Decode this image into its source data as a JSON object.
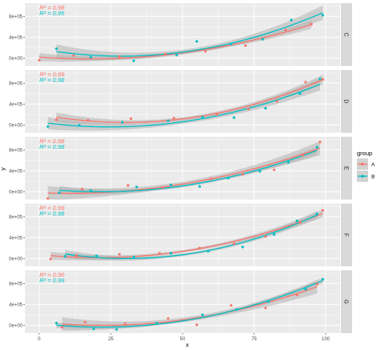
{
  "chart_data": {
    "type": "scatter",
    "facet_layout": "vertical",
    "xlabel": "x",
    "ylabel": "y",
    "xlim": [
      -5,
      105
    ],
    "x_ticks": [
      0,
      25,
      50,
      75,
      100
    ],
    "ylim": [
      -150000,
      1050000
    ],
    "y_ticks": [
      0,
      400000,
      800000
    ],
    "y_tick_labels": [
      "0e+00",
      "4e+05",
      "8e+05"
    ],
    "grid": true,
    "legend": {
      "title": "group",
      "placement": "right",
      "entries": [
        "A",
        "B"
      ]
    },
    "colors": {
      "A": "#F8766D",
      "B": "#00BFC4",
      "panel_bg": "#EBEBEB",
      "strip_bg": "#D9D9D9",
      "ribbon": "#B3B3B3"
    },
    "facets": [
      {
        "label": "C",
        "r2_labels": {
          "A": "R² = 0.98",
          "B": "R² = 0.95"
        },
        "series": [
          {
            "name": "A",
            "points": [
              [
                0,
                -40000
              ],
              [
                12,
                50000
              ],
              [
                28,
                30000
              ],
              [
                44,
                80000
              ],
              [
                58,
                130000
              ],
              [
                72,
                240000
              ],
              [
                86,
                540000
              ],
              [
                95,
                650000
              ]
            ]
          },
          {
            "name": "B",
            "points": [
              [
                6,
                180000
              ],
              [
                18,
                20000
              ],
              [
                33,
                -50000
              ],
              [
                48,
                60000
              ],
              [
                55,
                320000
              ],
              [
                67,
                270000
              ],
              [
                78,
                360000
              ],
              [
                88,
                730000
              ],
              [
                99,
                820000
              ]
            ]
          }
        ]
      },
      {
        "label": "D",
        "r2_labels": {
          "A": "R² = 0.99",
          "B": "R² = 0.98"
        },
        "series": [
          {
            "name": "A",
            "points": [
              [
                6,
                100000
              ],
              [
                17,
                90000
              ],
              [
                32,
                120000
              ],
              [
                47,
                130000
              ],
              [
                62,
                200000
              ],
              [
                73,
                300000
              ],
              [
                83,
                450000
              ],
              [
                93,
                820000
              ],
              [
                99,
                870000
              ]
            ]
          },
          {
            "name": "B",
            "points": [
              [
                3,
                -30000
              ],
              [
                14,
                -10000
              ],
              [
                29,
                50000
              ],
              [
                45,
                80000
              ],
              [
                57,
                150000
              ],
              [
                68,
                140000
              ],
              [
                79,
                320000
              ],
              [
                91,
                600000
              ],
              [
                98,
                880000
              ]
            ]
          }
        ]
      },
      {
        "label": "E",
        "r2_labels": {
          "A": "R² = 0.98",
          "B": "R² = 0.98"
        },
        "series": [
          {
            "name": "A",
            "points": [
              [
                3,
                -130000
              ],
              [
                15,
                50000
              ],
              [
                31,
                120000
              ],
              [
                43,
                80000
              ],
              [
                60,
                250000
              ],
              [
                71,
                330000
              ],
              [
                82,
                420000
              ],
              [
                92,
                700000
              ],
              [
                98,
                950000
              ]
            ]
          },
          {
            "name": "B",
            "points": [
              [
                7,
                -20000
              ],
              [
                18,
                20000
              ],
              [
                34,
                90000
              ],
              [
                46,
                130000
              ],
              [
                56,
                100000
              ],
              [
                66,
                260000
              ],
              [
                77,
                390000
              ],
              [
                87,
                560000
              ],
              [
                97,
                850000
              ]
            ]
          }
        ]
      },
      {
        "label": "F",
        "r2_labels": {
          "A": "R² = 0.99",
          "B": "R² = 0.98"
        },
        "series": [
          {
            "name": "A",
            "points": [
              [
                4,
                -10000
              ],
              [
                13,
                60000
              ],
              [
                28,
                80000
              ],
              [
                42,
                100000
              ],
              [
                56,
                200000
              ],
              [
                68,
                280000
              ],
              [
                79,
                420000
              ],
              [
                91,
                690000
              ],
              [
                99,
                920000
              ]
            ]
          },
          {
            "name": "B",
            "points": [
              [
                9,
                40000
              ],
              [
                20,
                50000
              ],
              [
                33,
                30000
              ],
              [
                46,
                100000
              ],
              [
                59,
                140000
              ],
              [
                71,
                220000
              ],
              [
                82,
                460000
              ],
              [
                90,
                720000
              ],
              [
                97,
                850000
              ]
            ]
          }
        ]
      },
      {
        "label": "G",
        "r2_labels": {
          "A": "R² = 0.96",
          "B": "R² = 0.99"
        },
        "series": [
          {
            "name": "A",
            "points": [
              [
                8,
                -40000
              ],
              [
                16,
                60000
              ],
              [
                30,
                30000
              ],
              [
                45,
                130000
              ],
              [
                55,
                10000
              ],
              [
                67,
                380000
              ],
              [
                79,
                330000
              ],
              [
                90,
                580000
              ],
              [
                97,
                790000
              ]
            ]
          },
          {
            "name": "B",
            "points": [
              [
                6,
                40000
              ],
              [
                19,
                -70000
              ],
              [
                27,
                -80000
              ],
              [
                41,
                40000
              ],
              [
                57,
                200000
              ],
              [
                69,
                300000
              ],
              [
                80,
                450000
              ],
              [
                93,
                690000
              ],
              [
                99,
                880000
              ]
            ]
          }
        ]
      }
    ]
  }
}
